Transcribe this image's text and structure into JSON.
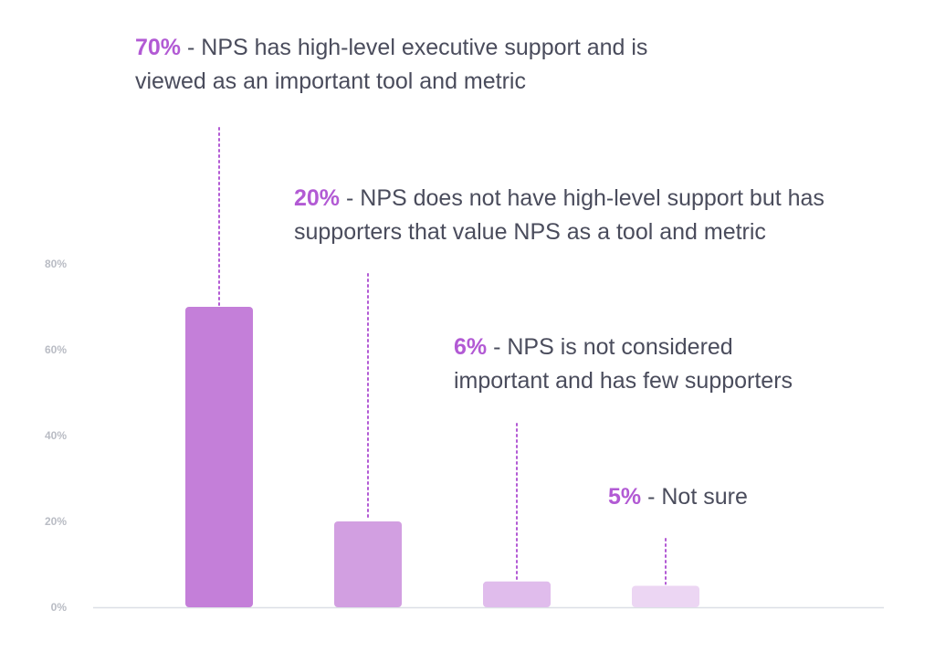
{
  "chart_data": {
    "type": "bar",
    "categories": [
      "NPS has high-level executive support and is viewed as an important tool and metric",
      "NPS does not have high-level support but has supporters that value NPS as a tool and metric",
      "NPS is not considered important and has few supporters",
      "Not sure"
    ],
    "values": [
      70,
      20,
      6,
      5
    ],
    "ylim": [
      0,
      80
    ],
    "yticks": [
      "0%",
      "20%",
      "40%",
      "60%",
      "80%"
    ],
    "grid": false,
    "annotations": [
      {
        "pct": "70%",
        "lines": [
          "- NPS has high-level executive support and is",
          "viewed as an important tool and metric"
        ]
      },
      {
        "pct": "20%",
        "lines": [
          "- NPS does not have high-level support but has",
          "supporters that value NPS as a tool and metric"
        ]
      },
      {
        "pct": "6%",
        "lines": [
          "- NPS is not considered",
          "important and has few supporters"
        ]
      },
      {
        "pct": "5%",
        "lines": [
          "- Not sure"
        ]
      }
    ],
    "bar_colors": [
      "#c47fd9",
      "#d29fe1",
      "#e0bcec",
      "#ecd6f3"
    ],
    "leader_color": "#b25ad4",
    "axis_color": "#dcdfe6"
  }
}
